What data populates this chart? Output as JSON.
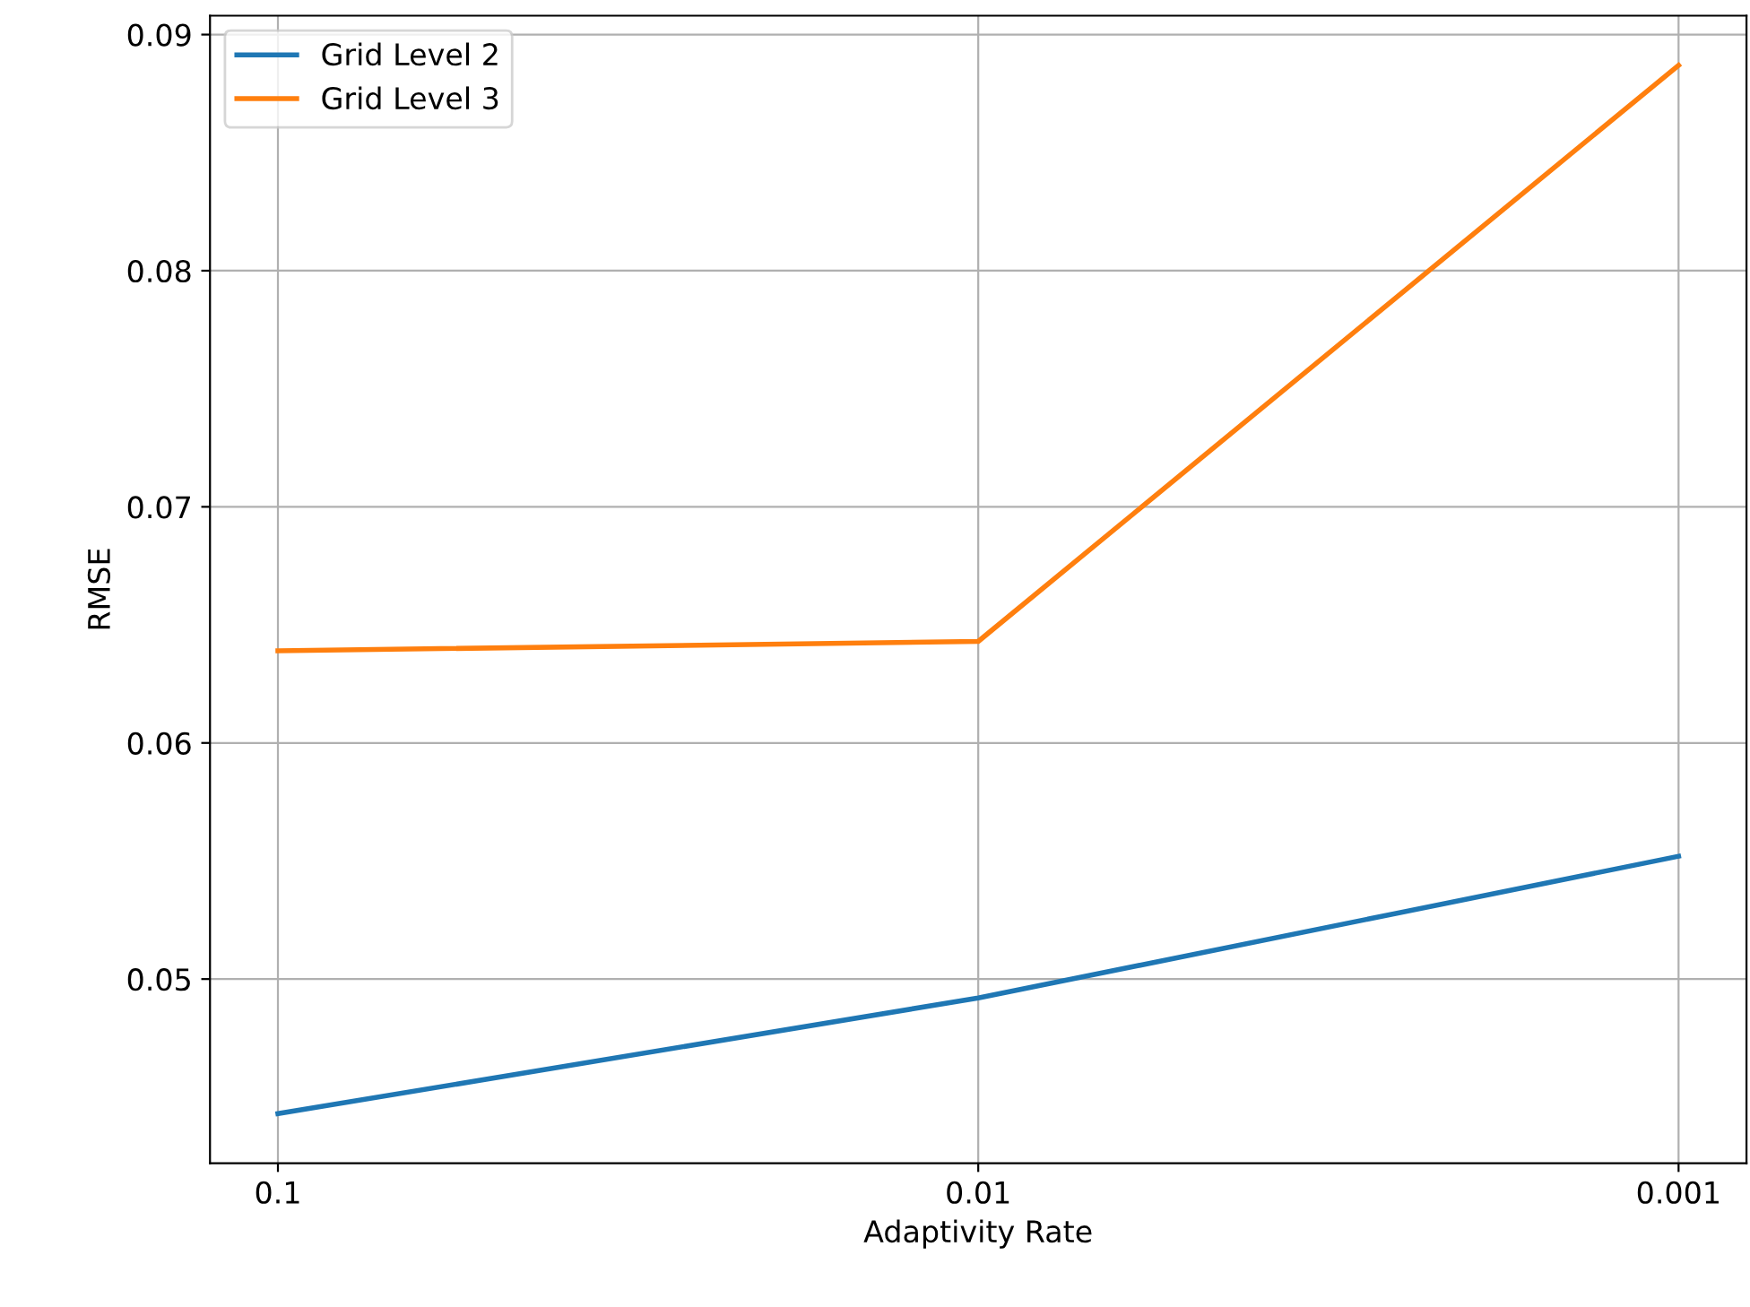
{
  "chart_data": {
    "type": "line",
    "xlabel": "Adaptivity Rate",
    "ylabel": "RMSE",
    "categories": [
      "0.1",
      "0.01",
      "0.001"
    ],
    "series": [
      {
        "name": "Grid Level 2",
        "color": "#1f77b4",
        "values": [
          0.0443,
          0.0492,
          0.0552
        ]
      },
      {
        "name": "Grid Level 3",
        "color": "#ff7f0e",
        "values": [
          0.0639,
          0.0643,
          0.0887
        ]
      }
    ],
    "ylim": [
      0.0422,
      0.0908
    ],
    "yticks": [
      0.05,
      0.06,
      0.07,
      0.08,
      0.09
    ],
    "grid": true,
    "legend": "top left"
  }
}
